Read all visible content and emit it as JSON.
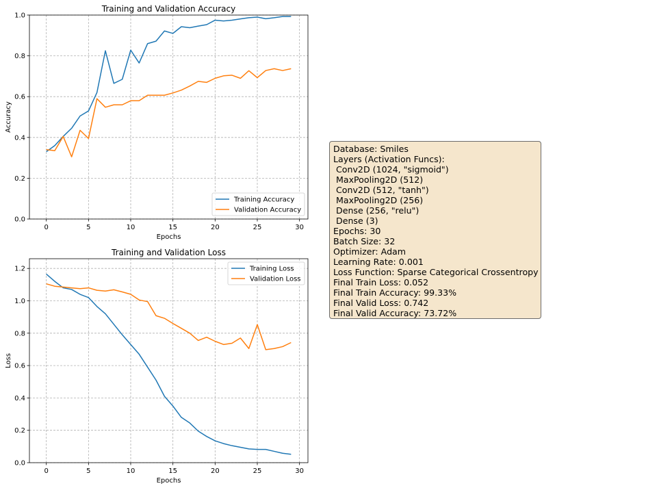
{
  "chart_data": [
    {
      "type": "line",
      "title": "Training and Validation Accuracy",
      "xlabel": "Epochs",
      "ylabel": "Accuracy",
      "xlim": [
        -2,
        31
      ],
      "ylim": [
        0,
        1
      ],
      "xticks": [
        0,
        5,
        10,
        15,
        20,
        25,
        30
      ],
      "yticks": [
        0.0,
        0.2,
        0.4,
        0.6,
        0.8,
        1.0
      ],
      "ytick_labels": [
        "0.0",
        "0.2",
        "0.4",
        "0.6",
        "0.8",
        "1.0"
      ],
      "grid": true,
      "legend_position": "lower-right",
      "x": [
        0,
        1,
        2,
        3,
        4,
        5,
        6,
        7,
        8,
        9,
        10,
        11,
        12,
        13,
        14,
        15,
        16,
        17,
        18,
        19,
        20,
        21,
        22,
        23,
        24,
        25,
        26,
        27,
        28,
        29
      ],
      "series": [
        {
          "name": "Training Accuracy",
          "color": "#1f77b4",
          "values": [
            0.33,
            0.36,
            0.405,
            0.445,
            0.505,
            0.53,
            0.62,
            0.825,
            0.665,
            0.685,
            0.828,
            0.765,
            0.86,
            0.872,
            0.922,
            0.91,
            0.943,
            0.938,
            0.946,
            0.953,
            0.975,
            0.971,
            0.975,
            0.981,
            0.987,
            0.99,
            0.982,
            0.987,
            0.993,
            0.993
          ]
        },
        {
          "name": "Validation Accuracy",
          "color": "#ff7f0e",
          "values": [
            0.34,
            0.335,
            0.405,
            0.305,
            0.435,
            0.395,
            0.59,
            0.548,
            0.56,
            0.56,
            0.58,
            0.58,
            0.607,
            0.607,
            0.607,
            0.618,
            0.632,
            0.652,
            0.675,
            0.67,
            0.69,
            0.702,
            0.705,
            0.69,
            0.727,
            0.693,
            0.728,
            0.737,
            0.728,
            0.737
          ]
        }
      ]
    },
    {
      "type": "line",
      "title": "Training and Validation Loss",
      "xlabel": "Epochs",
      "ylabel": "Loss",
      "xlim": [
        -2,
        31
      ],
      "ylim": [
        0,
        1.26
      ],
      "xticks": [
        0,
        5,
        10,
        15,
        20,
        25,
        30
      ],
      "yticks": [
        0.0,
        0.2,
        0.4,
        0.6,
        0.8,
        1.0,
        1.2
      ],
      "ytick_labels": [
        "0.0",
        "0.2",
        "0.4",
        "0.6",
        "0.8",
        "1.0",
        "1.2"
      ],
      "grid": true,
      "legend_position": "upper-right",
      "x": [
        0,
        1,
        2,
        3,
        4,
        5,
        6,
        7,
        8,
        9,
        10,
        11,
        12,
        13,
        14,
        15,
        16,
        17,
        18,
        19,
        20,
        21,
        22,
        23,
        24,
        25,
        26,
        27,
        28,
        29
      ],
      "series": [
        {
          "name": "Training Loss",
          "color": "#1f77b4",
          "values": [
            1.165,
            1.12,
            1.08,
            1.07,
            1.04,
            1.02,
            0.965,
            0.92,
            0.855,
            0.79,
            0.73,
            0.67,
            0.59,
            0.51,
            0.41,
            0.35,
            0.28,
            0.245,
            0.195,
            0.162,
            0.135,
            0.118,
            0.105,
            0.095,
            0.085,
            0.082,
            0.082,
            0.07,
            0.058,
            0.052
          ]
        },
        {
          "name": "Validation Loss",
          "color": "#ff7f0e",
          "values": [
            1.105,
            1.09,
            1.085,
            1.08,
            1.075,
            1.08,
            1.065,
            1.06,
            1.068,
            1.055,
            1.04,
            1.005,
            0.995,
            0.908,
            0.892,
            0.86,
            0.83,
            0.8,
            0.755,
            0.775,
            0.75,
            0.73,
            0.738,
            0.77,
            0.705,
            0.853,
            0.698,
            0.705,
            0.717,
            0.742
          ]
        }
      ]
    }
  ],
  "info_box": {
    "lines": [
      "Database: Smiles",
      "Layers (Activation Funcs):",
      " Conv2D (1024, \"sigmoid\")",
      " MaxPooling2D (512)",
      " Conv2D (512, \"tanh\")",
      " MaxPooling2D (256)",
      " Dense (256, \"relu\")",
      " Dense (3)",
      "Epochs: 30",
      "Batch Size: 32",
      "Optimizer: Adam",
      "Learning Rate: 0.001",
      "Loss Function: Sparse Categorical Crossentropy",
      "Final Train Loss: 0.052",
      "Final Train Accuracy: 99.33%",
      "Final Valid Loss: 0.742",
      "Final Valid Accuracy: 73.72%"
    ],
    "background": "#f5e6cc"
  }
}
